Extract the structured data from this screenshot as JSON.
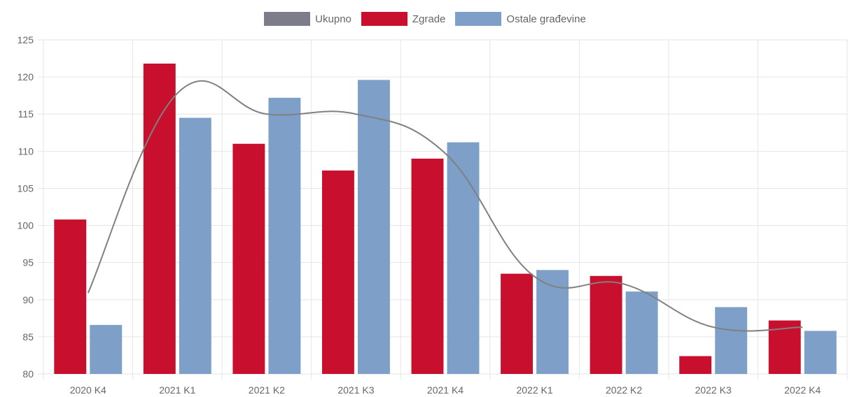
{
  "legend": {
    "items": [
      {
        "label": "Ukupno",
        "color": "#7c7c8a"
      },
      {
        "label": "Zgrade",
        "color": "#c8102e"
      },
      {
        "label": "Ostale građevine",
        "color": "#7ea0c8"
      }
    ]
  },
  "chart_data": {
    "type": "bar",
    "categories": [
      "2020 K4",
      "2021 K1",
      "2021 K2",
      "2021 K3",
      "2021 K4",
      "2022 K1",
      "2022 K2",
      "2022 K3",
      "2022 K4"
    ],
    "series": [
      {
        "name": "Zgrade",
        "type": "bar",
        "color": "#c8102e",
        "values": [
          100.8,
          121.8,
          111.0,
          107.4,
          109.0,
          93.5,
          93.2,
          82.4,
          87.2
        ]
      },
      {
        "name": "Ostale građevine",
        "type": "bar",
        "color": "#7ea0c8",
        "values": [
          86.6,
          114.5,
          117.2,
          119.6,
          111.2,
          94.0,
          91.1,
          89.0,
          85.8
        ]
      },
      {
        "name": "Ukupno",
        "type": "line",
        "color": "#808080",
        "values": [
          90.9,
          117.8,
          115.0,
          115.0,
          109.7,
          93.1,
          92.1,
          86.3,
          86.3
        ]
      }
    ],
    "ylim": [
      80,
      125
    ],
    "yticks": [
      "80",
      "85",
      "90",
      "95",
      "100",
      "105",
      "110",
      "115",
      "120",
      "125"
    ],
    "grid": true,
    "legend_position": "top-center",
    "title": "",
    "xlabel": "",
    "ylabel": ""
  }
}
